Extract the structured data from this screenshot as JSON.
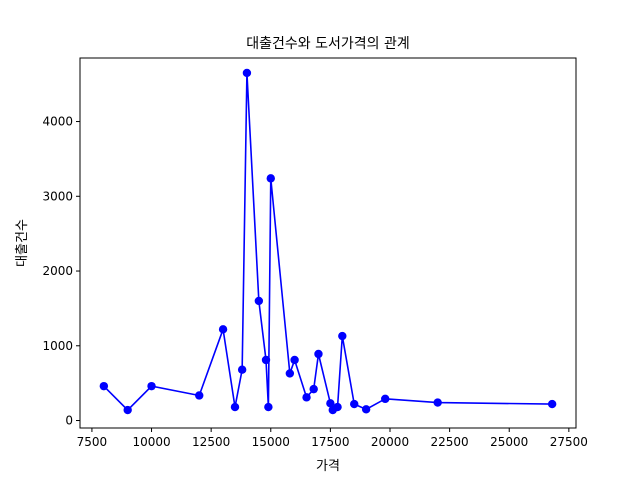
{
  "chart_data": {
    "type": "line",
    "title": "대출건수와 도서가격의 관계",
    "xlabel": "가격",
    "ylabel": "대출건수",
    "xlim": [
      7000,
      27800
    ],
    "ylim": [
      -100,
      4850
    ],
    "xticks": [
      7500,
      10000,
      12500,
      15000,
      17500,
      20000,
      22500,
      25000,
      27500
    ],
    "yticks": [
      0,
      1000,
      2000,
      3000,
      4000
    ],
    "grid": false,
    "color": "#0000ff",
    "marker": "circle",
    "series": [
      {
        "x": [
          8000,
          9000,
          10000,
          12000,
          13000,
          13500,
          13800,
          14000,
          14500,
          14800,
          14900,
          15000,
          15800,
          16000,
          16500,
          16800,
          17000,
          17500,
          17600,
          17800,
          18000,
          18500,
          19000,
          19800,
          22000,
          26800
        ],
        "y": [
          460,
          140,
          460,
          335,
          1220,
          180,
          680,
          4650,
          1600,
          810,
          180,
          3240,
          630,
          810,
          310,
          420,
          890,
          230,
          140,
          180,
          1130,
          220,
          150,
          290,
          240,
          220
        ]
      }
    ]
  }
}
